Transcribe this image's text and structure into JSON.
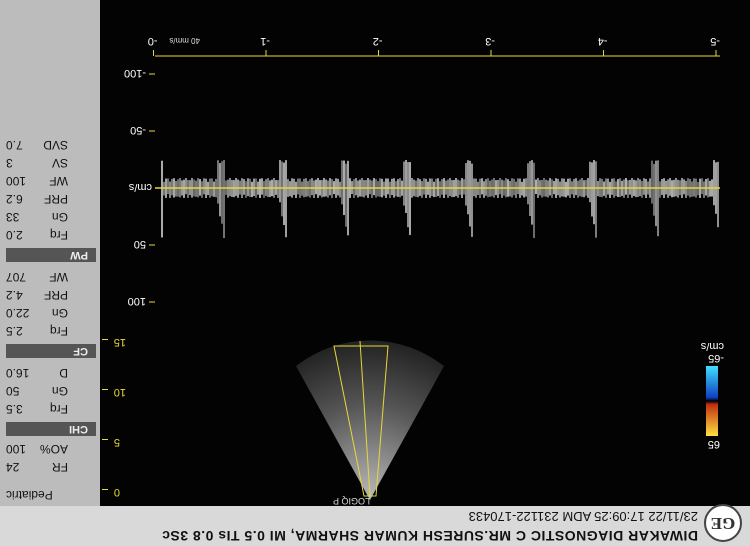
{
  "header": {
    "line1": "DIWAKAR DIAGNOSTIC C MR.SURESH KUMAR SHARMA, MI 0.5   TIs 0.8 3Sc",
    "line2": "23/11/22 17:09:25      ADM  231122-170433",
    "logo": "GE"
  },
  "probe": {
    "preset": "Pediatric",
    "label": "LOGIQ P"
  },
  "params": {
    "top": [
      {
        "k": "FR",
        "v": "24"
      },
      {
        "k": "AO%",
        "v": "100"
      }
    ],
    "chi_mode": "CHI",
    "chi": [
      {
        "k": "Frq",
        "v": "3.5"
      },
      {
        "k": "Gn",
        "v": "50"
      },
      {
        "k": "D",
        "v": "16.0"
      }
    ],
    "cf_mode": "CF",
    "cf": [
      {
        "k": "Frq",
        "v": "2.5"
      },
      {
        "k": "Gn",
        "v": "22.0"
      },
      {
        "k": "PRF",
        "v": "4.2"
      },
      {
        "k": "WF",
        "v": "707"
      }
    ],
    "pw_mode": "PW",
    "pw": [
      {
        "k": "Frq",
        "v": "2.0"
      },
      {
        "k": "Gn",
        "v": "33"
      },
      {
        "k": "PRF",
        "v": "6.2"
      },
      {
        "k": "WF",
        "v": "100"
      },
      {
        "k": "SV",
        "v": "3"
      },
      {
        "k": "SVD",
        "v": "7.0"
      }
    ]
  },
  "depth_scale": [
    "0",
    "5",
    "10",
    "15"
  ],
  "color_scale": {
    "top": "65",
    "bottom": "-65",
    "unit": "cm/s"
  },
  "velocity_scale": {
    "unit": "cm/s",
    "ticks": [
      "100",
      "50",
      "-50",
      "-100"
    ]
  },
  "time_scale": {
    "ticks": [
      "-5",
      "-4",
      "-3",
      "-2",
      "-1",
      "-0"
    ],
    "unit": "40 mm/s"
  },
  "colors": {
    "accent": "#e8d83a",
    "panel": "#bcbcbc",
    "header": "#d9d9d9"
  }
}
